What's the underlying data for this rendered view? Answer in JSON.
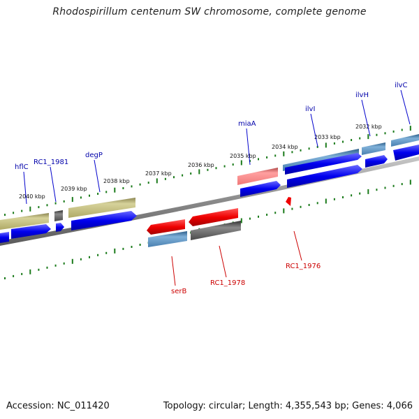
{
  "title": "Rhodospirillum centenum SW chromosome, complete genome",
  "footer": {
    "accession": "Accession: NC_011420",
    "summary": "Topology: circular; Length: 4,355,543 bp; Genes: 4,066"
  },
  "colors": {
    "cds_blue": "#0000ee",
    "gene_olive": "#b5b06b",
    "gene_red": "#ee0000",
    "gene_pink": "#f08080",
    "gene_steel": "#4f86b4",
    "gene_gray": "#5a5a5a",
    "tick_green": "#1a7a1a",
    "label_blue": "#0000aa",
    "label_red": "#cc0000"
  },
  "kbp_labels": [
    "2040 kbp",
    "2039 kbp",
    "2038 kbp",
    "2037 kbp",
    "2036 kbp",
    "2035 kbp",
    "2034 kbp",
    "2033 kbp",
    "2032 kbp"
  ],
  "forward_labels": [
    "hflC",
    "RC1_1981",
    "degP",
    "miaA",
    "ilvI",
    "ilvH",
    "ilvC"
  ],
  "reverse_labels": [
    "serB",
    "RC1_1978",
    "RC1_1976"
  ]
}
